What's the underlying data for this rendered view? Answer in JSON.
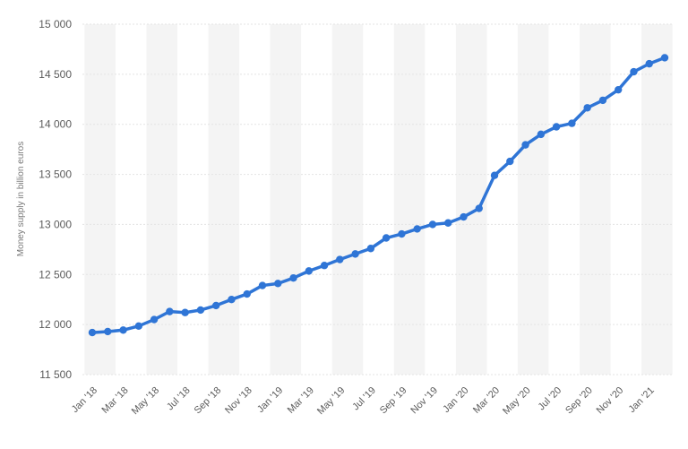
{
  "chart_data": {
    "type": "line",
    "ylabel": "Money supply in billion euros",
    "xlabel": "",
    "ylim": [
      11500,
      15000
    ],
    "yticks": [
      11500,
      12000,
      12500,
      13000,
      13500,
      14000,
      14500,
      15000
    ],
    "ytick_labels": [
      "11 500",
      "12 000",
      "12 500",
      "13 000",
      "13 500",
      "14 000",
      "14 500",
      "15 000"
    ],
    "x": [
      "Jan '18",
      "Feb '18",
      "Mar '18",
      "Apr '18",
      "May '18",
      "Jun '18",
      "Jul '18",
      "Aug '18",
      "Sep '18",
      "Oct '18",
      "Nov '18",
      "Dec '18",
      "Jan '19",
      "Feb '19",
      "Mar '19",
      "Apr '19",
      "May '19",
      "Jun '19",
      "Jul '19",
      "Aug '19",
      "Sep '19",
      "Oct '19",
      "Nov '19",
      "Dec '19",
      "Jan '20",
      "Feb '20",
      "Mar '20",
      "Apr '20",
      "May '20",
      "Jun '20",
      "Jul '20",
      "Aug '20",
      "Sep '20",
      "Oct '20",
      "Nov '20",
      "Dec '20",
      "Jan '21",
      "Feb '21"
    ],
    "xtick_labels": [
      "Jan '18",
      "Mar '18",
      "May '18",
      "Jul '18",
      "Sep '18",
      "Nov '18",
      "Jan '19",
      "Mar '19",
      "May '19",
      "Jul '19",
      "Sep '19",
      "Nov '19",
      "Jan '20",
      "Mar '20",
      "May '20",
      "Jul '20",
      "Sep '20",
      "Nov '20",
      "Jan '21"
    ],
    "series": [
      {
        "values": [
          11920,
          11930,
          11945,
          11985,
          12050,
          12130,
          12120,
          12145,
          12190,
          12250,
          12305,
          12390,
          12410,
          12465,
          12535,
          12590,
          12650,
          12705,
          12760,
          12865,
          12905,
          12955,
          13000,
          13015,
          13075,
          13160,
          13490,
          13630,
          13795,
          13900,
          13975,
          14010,
          14165,
          14240,
          14345,
          14525,
          14605,
          14665
        ]
      }
    ],
    "grid": true,
    "legend": "none",
    "colors": {
      "line": "#2f75d6",
      "band": "#f4f4f4",
      "grid": "#e3e3e3",
      "text": "#5b5b5b"
    }
  }
}
